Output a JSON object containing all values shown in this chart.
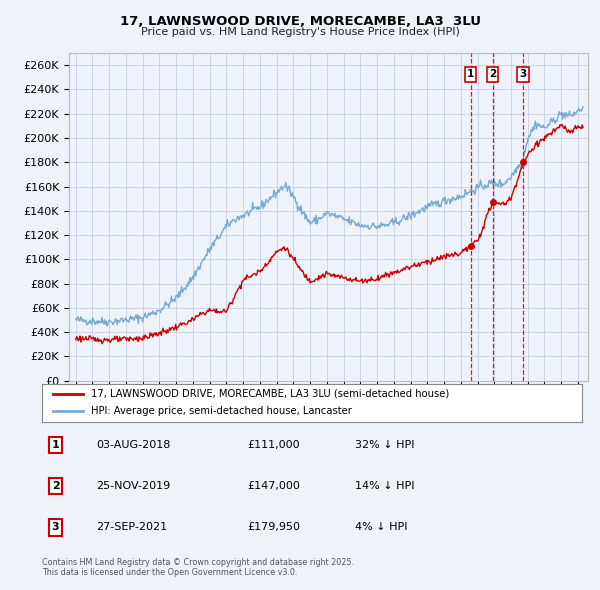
{
  "title": "17, LAWNSWOOD DRIVE, MORECAMBE, LA3  3LU",
  "subtitle": "Price paid vs. HM Land Registry's House Price Index (HPI)",
  "ylim": [
    0,
    270000
  ],
  "yticks": [
    0,
    20000,
    40000,
    60000,
    80000,
    100000,
    120000,
    140000,
    160000,
    180000,
    200000,
    220000,
    240000,
    260000
  ],
  "xlim_start": 1994.6,
  "xlim_end": 2025.6,
  "background_color": "#eef2fb",
  "plot_bg_color": "#eef2fb",
  "grid_color": "#c8d0e8",
  "red_line_color": "#cc0000",
  "blue_line_color": "#7aaacf",
  "sale_markers": [
    {
      "year": 2018.583,
      "price": 111000,
      "label": "1"
    },
    {
      "year": 2019.9,
      "price": 147000,
      "label": "2"
    },
    {
      "year": 2021.74,
      "price": 179950,
      "label": "3"
    }
  ],
  "vline_color": "#cc0000",
  "legend_red_label": "17, LAWNSWOOD DRIVE, MORECAMBE, LA3 3LU (semi-detached house)",
  "legend_blue_label": "HPI: Average price, semi-detached house, Lancaster",
  "table_entries": [
    {
      "num": "1",
      "date": "03-AUG-2018",
      "price": "£111,000",
      "hpi": "32% ↓ HPI"
    },
    {
      "num": "2",
      "date": "25-NOV-2019",
      "price": "£147,000",
      "hpi": "14% ↓ HPI"
    },
    {
      "num": "3",
      "date": "27-SEP-2021",
      "price": "£179,950",
      "hpi": "4% ↓ HPI"
    }
  ],
  "footer": "Contains HM Land Registry data © Crown copyright and database right 2025.\nThis data is licensed under the Open Government Licence v3.0.",
  "hpi_base_points": [
    [
      1995.0,
      50000
    ],
    [
      1996.0,
      49000
    ],
    [
      1997.0,
      48500
    ],
    [
      1998.0,
      50000
    ],
    [
      1999.0,
      52000
    ],
    [
      2000.0,
      58000
    ],
    [
      2001.0,
      68000
    ],
    [
      2002.0,
      85000
    ],
    [
      2003.0,
      108000
    ],
    [
      2004.0,
      127000
    ],
    [
      2004.5,
      133000
    ],
    [
      2005.0,
      136000
    ],
    [
      2006.0,
      143000
    ],
    [
      2007.0,
      155000
    ],
    [
      2007.5,
      161000
    ],
    [
      2008.0,
      152000
    ],
    [
      2008.5,
      140000
    ],
    [
      2009.0,
      130000
    ],
    [
      2009.5,
      133000
    ],
    [
      2010.0,
      138000
    ],
    [
      2011.0,
      133000
    ],
    [
      2012.0,
      128000
    ],
    [
      2013.0,
      127000
    ],
    [
      2013.5,
      128000
    ],
    [
      2014.0,
      130000
    ],
    [
      2015.0,
      136000
    ],
    [
      2016.0,
      143000
    ],
    [
      2017.0,
      148000
    ],
    [
      2018.0,
      152000
    ],
    [
      2018.6,
      156000
    ],
    [
      2019.0,
      159000
    ],
    [
      2019.9,
      163000
    ],
    [
      2020.5,
      162000
    ],
    [
      2021.0,
      168000
    ],
    [
      2021.7,
      182000
    ],
    [
      2022.0,
      200000
    ],
    [
      2022.5,
      212000
    ],
    [
      2023.0,
      208000
    ],
    [
      2023.5,
      214000
    ],
    [
      2024.0,
      220000
    ],
    [
      2024.5,
      218000
    ],
    [
      2025.0,
      222000
    ],
    [
      2025.3,
      225000
    ]
  ],
  "red_base_points": [
    [
      1995.0,
      35000
    ],
    [
      1996.0,
      34000
    ],
    [
      1997.0,
      33500
    ],
    [
      1998.0,
      34000
    ],
    [
      1999.0,
      35000
    ],
    [
      2000.0,
      39000
    ],
    [
      2001.0,
      44000
    ],
    [
      2002.0,
      50000
    ],
    [
      2002.5,
      55000
    ],
    [
      2003.0,
      58000
    ],
    [
      2003.5,
      57000
    ],
    [
      2004.0,
      57000
    ],
    [
      2005.0,
      83000
    ],
    [
      2006.0,
      90000
    ],
    [
      2007.0,
      106000
    ],
    [
      2007.5,
      110000
    ],
    [
      2008.0,
      100000
    ],
    [
      2008.5,
      90000
    ],
    [
      2009.0,
      82000
    ],
    [
      2009.5,
      85000
    ],
    [
      2010.0,
      88000
    ],
    [
      2010.5,
      86000
    ],
    [
      2011.0,
      85000
    ],
    [
      2012.0,
      82000
    ],
    [
      2013.0,
      84000
    ],
    [
      2013.5,
      87000
    ],
    [
      2014.0,
      89000
    ],
    [
      2015.0,
      94000
    ],
    [
      2016.0,
      98000
    ],
    [
      2017.0,
      102000
    ],
    [
      2018.0,
      105000
    ],
    [
      2018.583,
      111000
    ],
    [
      2019.0,
      115000
    ],
    [
      2019.9,
      147000
    ],
    [
      2020.5,
      145000
    ],
    [
      2021.0,
      150000
    ],
    [
      2021.74,
      179950
    ],
    [
      2022.0,
      185000
    ],
    [
      2022.5,
      195000
    ],
    [
      2023.0,
      200000
    ],
    [
      2023.5,
      205000
    ],
    [
      2024.0,
      210000
    ],
    [
      2024.5,
      205000
    ],
    [
      2025.3,
      210000
    ]
  ]
}
